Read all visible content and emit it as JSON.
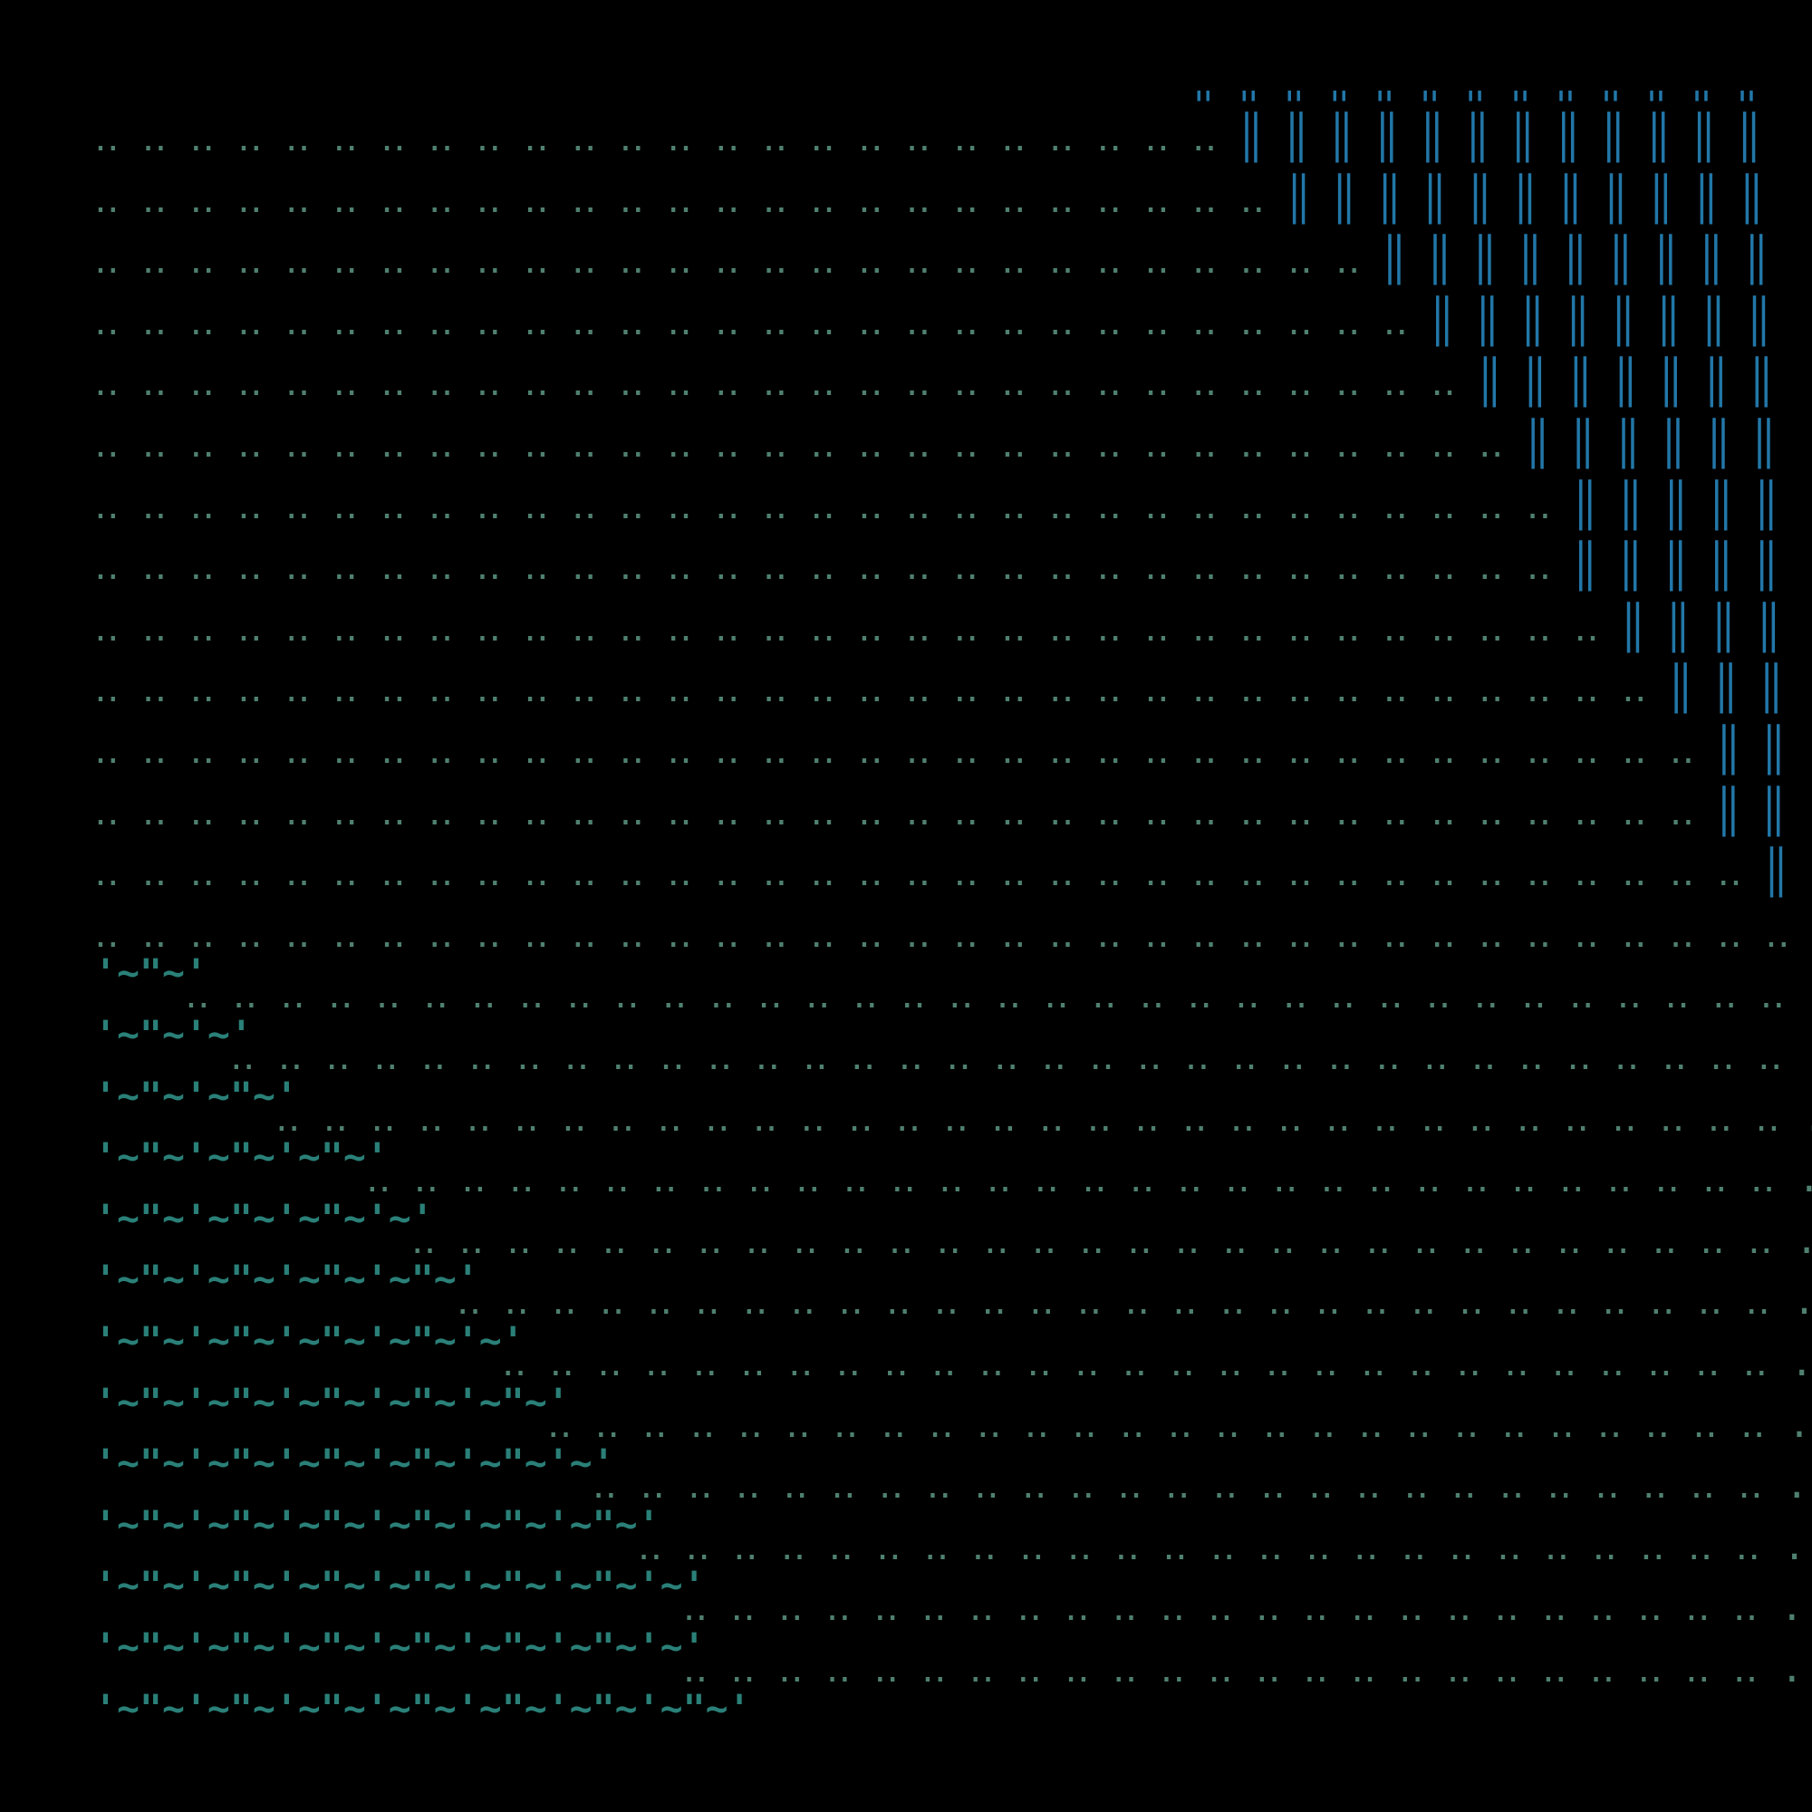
{
  "colors": {
    "background": "#000000",
    "dots": "#4f8070",
    "bars": "#2277a8",
    "waves": "#2a8078"
  },
  "rows": [
    {
      "prefix": "",
      "dots": "‥ ‥ ‥ ‥ ‥ ‥ ‥ ‥ ‥ ‥ ‥ ‥ ‥ ‥ ‥ ‥ ‥ ‥ ‥ ‥ ‥ ‥ ‥",
      "bars": "‖ ‖ ‖ ‖ ‖ ‖ ‖ ‖ ‖ ‖ ‖ ‖ ‖"
    },
    {
      "prefix": "",
      "dots": "‥ ‥ ‥ ‥ ‥ ‥ ‥ ‥ ‥ ‥ ‥ ‥ ‥ ‥ ‥ ‥ ‥ ‥ ‥ ‥ ‥ ‥ ‥ ‥",
      "bars": "‖ ‖ ‖ ‖ ‖ ‖ ‖ ‖ ‖ ‖ ‖ ‖"
    },
    {
      "prefix": "",
      "dots": "‥ ‥ ‥ ‥ ‥ ‥ ‥ ‥ ‥ ‥ ‥ ‥ ‥ ‥ ‥ ‥ ‥ ‥ ‥ ‥ ‥ ‥ ‥ ‥ ‥",
      "bars": "‖ ‖ ‖ ‖ ‖ ‖ ‖ ‖ ‖ ‖ ‖"
    },
    {
      "prefix": "",
      "dots": "‥ ‥ ‥ ‥ ‥ ‥ ‥ ‥ ‥ ‥ ‥ ‥ ‥ ‥ ‥ ‥ ‥ ‥ ‥ ‥ ‥ ‥ ‥ ‥ ‥ ‥ ‥",
      "bars": "‖ ‖ ‖ ‖ ‖ ‖ ‖ ‖ ‖"
    },
    {
      "prefix": "",
      "dots": "‥ ‥ ‥ ‥ ‥ ‥ ‥ ‥ ‥ ‥ ‥ ‥ ‥ ‥ ‥ ‥ ‥ ‥ ‥ ‥ ‥ ‥ ‥ ‥ ‥ ‥ ‥ ‥",
      "bars": "‖ ‖ ‖ ‖ ‖ ‖ ‖ ‖"
    },
    {
      "prefix": "",
      "dots": "‥ ‥ ‥ ‥ ‥ ‥ ‥ ‥ ‥ ‥ ‥ ‥ ‥ ‥ ‥ ‥ ‥ ‥ ‥ ‥ ‥ ‥ ‥ ‥ ‥ ‥ ‥ ‥ ‥",
      "bars": "‖ ‖ ‖ ‖ ‖ ‖ ‖"
    },
    {
      "prefix": "",
      "dots": "‥ ‥ ‥ ‥ ‥ ‥ ‥ ‥ ‥ ‥ ‥ ‥ ‥ ‥ ‥ ‥ ‥ ‥ ‥ ‥ ‥ ‥ ‥ ‥ ‥ ‥ ‥ ‥ ‥ ‥",
      "bars": "‖ ‖ ‖ ‖ ‖ ‖"
    },
    {
      "prefix": "",
      "dots": "‥ ‥ ‥ ‥ ‥ ‥ ‥ ‥ ‥ ‥ ‥ ‥ ‥ ‥ ‥ ‥ ‥ ‥ ‥ ‥ ‥ ‥ ‥ ‥ ‥ ‥ ‥ ‥ ‥ ‥ ‥",
      "bars": "‖ ‖ ‖ ‖ ‖"
    },
    {
      "prefix": "",
      "dots": "‥ ‥ ‥ ‥ ‥ ‥ ‥ ‥ ‥ ‥ ‥ ‥ ‥ ‥ ‥ ‥ ‥ ‥ ‥ ‥ ‥ ‥ ‥ ‥ ‥ ‥ ‥ ‥ ‥ ‥ ‥",
      "bars": "‖ ‖ ‖ ‖ ‖"
    },
    {
      "prefix": "",
      "dots": "‥ ‥ ‥ ‥ ‥ ‥ ‥ ‥ ‥ ‥ ‥ ‥ ‥ ‥ ‥ ‥ ‥ ‥ ‥ ‥ ‥ ‥ ‥ ‥ ‥ ‥ ‥ ‥ ‥ ‥ ‥ ‥",
      "bars": "‖ ‖ ‖ ‖"
    },
    {
      "prefix": "",
      "dots": "‥ ‥ ‥ ‥ ‥ ‥ ‥ ‥ ‥ ‥ ‥ ‥ ‥ ‥ ‥ ‥ ‥ ‥ ‥ ‥ ‥ ‥ ‥ ‥ ‥ ‥ ‥ ‥ ‥ ‥ ‥ ‥ ‥",
      "bars": "‖ ‖ ‖"
    },
    {
      "prefix": "",
      "dots": "‥ ‥ ‥ ‥ ‥ ‥ ‥ ‥ ‥ ‥ ‥ ‥ ‥ ‥ ‥ ‥ ‥ ‥ ‥ ‥ ‥ ‥ ‥ ‥ ‥ ‥ ‥ ‥ ‥ ‥ ‥ ‥ ‥ ‥",
      "bars": "‖ ‖"
    },
    {
      "prefix": "",
      "dots": "‥ ‥ ‥ ‥ ‥ ‥ ‥ ‥ ‥ ‥ ‥ ‥ ‥ ‥ ‥ ‥ ‥ ‥ ‥ ‥ ‥ ‥ ‥ ‥ ‥ ‥ ‥ ‥ ‥ ‥ ‥ ‥ ‥ ‥",
      "bars": "‖ ‖"
    },
    {
      "prefix": "",
      "dots": "‥ ‥ ‥ ‥ ‥ ‥ ‥ ‥ ‥ ‥ ‥ ‥ ‥ ‥ ‥ ‥ ‥ ‥ ‥ ‥ ‥ ‥ ‥ ‥ ‥ ‥ ‥ ‥ ‥ ‥ ‥ ‥ ‥ ‥ ‥",
      "bars": "‖"
    },
    {
      "prefix": "",
      "dots": "‥ ‥ ‥ ‥ ‥ ‥ ‥ ‥ ‥ ‥ ‥ ‥ ‥ ‥ ‥ ‥ ‥ ‥ ‥ ‥ ‥ ‥ ‥ ‥ ‥ ‥ ‥ ‥ ‥ ‥ ‥ ‥ ‥ ‥ ‥ ‥",
      "bars": ""
    },
    {
      "prefix": "'~\"~'",
      "dots": "‥ ‥ ‥ ‥ ‥ ‥ ‥ ‥ ‥ ‥ ‥ ‥ ‥ ‥ ‥ ‥ ‥ ‥ ‥ ‥ ‥ ‥ ‥ ‥ ‥ ‥ ‥ ‥ ‥ ‥ ‥ ‥ ‥ ‥",
      "bars": ""
    },
    {
      "prefix": "'~\"~'~'",
      "dots": "‥ ‥ ‥ ‥ ‥ ‥ ‥ ‥ ‥ ‥ ‥ ‥ ‥ ‥ ‥ ‥ ‥ ‥ ‥ ‥ ‥ ‥ ‥ ‥ ‥ ‥ ‥ ‥ ‥ ‥ ‥ ‥ ‥ .",
      "bars": ""
    },
    {
      "prefix": "'~\"~'~\"~'",
      "dots": "‥ ‥ ‥ ‥ ‥ ‥ ‥ ‥ ‥ ‥ ‥ ‥ ‥ ‥ ‥ ‥ ‥ ‥ ‥ ‥ ‥ ‥ ‥ ‥ ‥ ‥ ‥ ‥ ‥ ‥ ‥ ‥ .",
      "bars": ""
    },
    {
      "prefix": "'~\"~'~\"~'~\"~'",
      "dots": "‥ ‥ ‥ ‥ ‥ ‥ ‥ ‥ ‥ ‥ ‥ ‥ ‥ ‥ ‥ ‥ ‥ ‥ ‥ ‥ ‥ ‥ ‥ ‥ ‥ ‥ ‥ ‥ ‥ ‥ .",
      "bars": ""
    },
    {
      "prefix": "'~\"~'~\"~'~\"~'~'",
      "dots": "‥ ‥ ‥ ‥ ‥ ‥ ‥ ‥ ‥ ‥ ‥ ‥ ‥ ‥ ‥ ‥ ‥ ‥ ‥ ‥ ‥ ‥ ‥ ‥ ‥ ‥ ‥ ‥ ‥ .",
      "bars": ""
    },
    {
      "prefix": "'~\"~'~\"~'~\"~'~\"~'",
      "dots": "‥ ‥ ‥ ‥ ‥ ‥ ‥ ‥ ‥ ‥ ‥ ‥ ‥ ‥ ‥ ‥ ‥ ‥ ‥ ‥ ‥ ‥ ‥ ‥ ‥ ‥ ‥ ‥ .",
      "bars": ""
    },
    {
      "prefix": "'~\"~'~\"~'~\"~'~\"~'~'",
      "dots": "‥ ‥ ‥ ‥ ‥ ‥ ‥ ‥ ‥ ‥ ‥ ‥ ‥ ‥ ‥ ‥ ‥ ‥ ‥ ‥ ‥ ‥ ‥ ‥ ‥ ‥ ‥ .",
      "bars": ""
    },
    {
      "prefix": "'~\"~'~\"~'~\"~'~\"~'~\"~'",
      "dots": "‥ ‥ ‥ ‥ ‥ ‥ ‥ ‥ ‥ ‥ ‥ ‥ ‥ ‥ ‥ ‥ ‥ ‥ ‥ ‥ ‥ ‥ ‥ ‥ ‥ ‥ .",
      "bars": ""
    },
    {
      "prefix": "'~\"~'~\"~'~\"~'~\"~'~\"~'~'",
      "dots": "‥ ‥ ‥ ‥ ‥ ‥ ‥ ‥ ‥ ‥ ‥ ‥ ‥ ‥ ‥ ‥ ‥ ‥ ‥ ‥ ‥ ‥ ‥ ‥ ‥ .",
      "bars": ""
    },
    {
      "prefix": "'~\"~'~\"~'~\"~'~\"~'~\"~'~\"~'",
      "dots": "‥ ‥ ‥ ‥ ‥ ‥ ‥ ‥ ‥ ‥ ‥ ‥ ‥ ‥ ‥ ‥ ‥ ‥ ‥ ‥ ‥ ‥ ‥ ‥ .",
      "bars": ""
    },
    {
      "prefix": "'~\"~'~\"~'~\"~'~\"~'~\"~'~\"~'~'",
      "dots": "‥ ‥ ‥ ‥ ‥ ‥ ‥ ‥ ‥ ‥ ‥ ‥ ‥ ‥ ‥ ‥ ‥ ‥ ‥ ‥ ‥ ‥ ‥ .",
      "bars": ""
    },
    {
      "prefix": "'~\"~'~\"~'~\"~'~\"~'~\"~'~\"~'~'",
      "dots": "‥ ‥ ‥ ‥ ‥ ‥ ‥ ‥ ‥ ‥ ‥ ‥ ‥ ‥ ‥ ‥ ‥ ‥ ‥ ‥ ‥ ‥ ‥ .",
      "bars": ""
    },
    {
      "prefix": "'~\"~'~\"~'~\"~'~\"~'~\"~'~\"~'~\"~'",
      "dots": "",
      "bars": ""
    }
  ]
}
